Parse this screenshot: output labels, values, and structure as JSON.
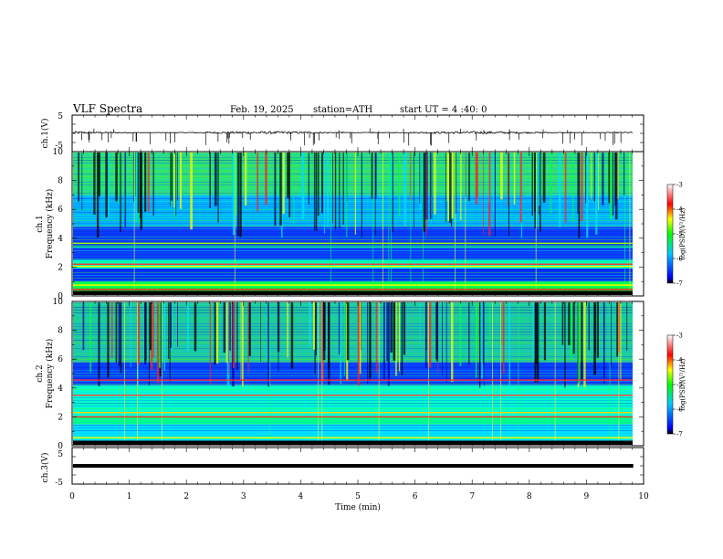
{
  "header": {
    "title": "VLF  Spectra",
    "date": "Feb. 19, 2025",
    "station": "station=ATH",
    "start": "start  UT  =   4  :40: 0"
  },
  "chart_data": [
    {
      "type": "line",
      "name": "ch1-waveform",
      "ylabel": "ch.1(V)",
      "ylim": [
        -5,
        5
      ],
      "yticks": [
        "5",
        "-5"
      ],
      "xlim": [
        0,
        10
      ],
      "baseline_v": 0.2,
      "noise_v": 0.35,
      "spike_count": 70,
      "spike_max_v": -3.5,
      "line_color": "#000000"
    },
    {
      "type": "heatmap",
      "name": "ch1-spectrogram",
      "ylabel_top": "ch.1",
      "ylabel": "Frequency (kHz)",
      "ylim": [
        0,
        10
      ],
      "yticks": [
        "0",
        "2",
        "4",
        "6",
        "8",
        "10"
      ],
      "xlim": [
        0,
        9.82
      ],
      "bands_khz": [
        {
          "from": 0,
          "to": 0.35,
          "color": "#000000"
        },
        {
          "from": 0.35,
          "to": 1.0,
          "color": "#00ff3c"
        },
        {
          "from": 1.0,
          "to": 1.9,
          "color": "#0033ff"
        },
        {
          "from": 1.9,
          "to": 2.5,
          "color": "#00ffc0"
        },
        {
          "from": 2.5,
          "to": 4.8,
          "color": "#0a3cff"
        },
        {
          "from": 4.8,
          "to": 7.0,
          "color": "#00b4ff"
        },
        {
          "from": 7.0,
          "to": 10.0,
          "color": "#2ee07a"
        }
      ],
      "lines_khz": [
        {
          "f": 0.45,
          "color": "#ff2020"
        },
        {
          "f": 0.75,
          "color": "#ffff00"
        },
        {
          "f": 2.05,
          "color": "#ffff00"
        },
        {
          "f": 2.2,
          "color": "#ff3030"
        },
        {
          "f": 3.4,
          "color": "#00ff80"
        },
        {
          "f": 3.65,
          "color": "#9cff00"
        }
      ],
      "vertical_event_count": 140
    },
    {
      "type": "heatmap",
      "name": "ch2-spectrogram",
      "ylabel_top": "ch.2",
      "ylabel": "Frequency (kHz)",
      "ylim": [
        0,
        10
      ],
      "yticks": [
        "0",
        "2",
        "4",
        "6",
        "8",
        "10"
      ],
      "xlim": [
        0,
        9.82
      ],
      "bands_khz": [
        {
          "from": 0,
          "to": 0.3,
          "color": "#000000"
        },
        {
          "from": 0.3,
          "to": 1.5,
          "color": "#00e0ff"
        },
        {
          "from": 1.5,
          "to": 2.0,
          "color": "#00ff80"
        },
        {
          "from": 2.0,
          "to": 4.2,
          "color": "#00ffd0"
        },
        {
          "from": 4.2,
          "to": 5.8,
          "color": "#0a3cff"
        },
        {
          "from": 5.8,
          "to": 10.0,
          "color": "#20c8a0"
        }
      ],
      "lines_khz": [
        {
          "f": 0.55,
          "color": "#ffff00"
        },
        {
          "f": 2.0,
          "color": "#ff3020"
        },
        {
          "f": 2.3,
          "color": "#ffd000"
        },
        {
          "f": 3.5,
          "color": "#ff4040"
        },
        {
          "f": 4.55,
          "color": "#ff3030"
        }
      ],
      "vertical_event_count": 130
    },
    {
      "type": "line",
      "name": "ch3-waveform",
      "ylabel": "ch.3(V)",
      "ylim": [
        -5,
        5
      ],
      "yticks": [
        "5",
        "-5"
      ],
      "xlim": [
        0,
        10
      ],
      "baseline_v": 0.0,
      "line_color": "#000000"
    }
  ],
  "xaxis": {
    "label": "Time  (min)",
    "ticks": [
      "0",
      "1",
      "2",
      "3",
      "4",
      "5",
      "6",
      "7",
      "8",
      "9",
      "10"
    ],
    "xlim": [
      0,
      10
    ]
  },
  "colorbars": [
    {
      "label": "log(PSD)(V²/Hz)",
      "ticks": [
        "-3",
        "-4",
        "-5",
        "-6",
        "-7"
      ],
      "range": [
        -7,
        -3
      ],
      "colors": [
        "#000000",
        "#0000ff",
        "#00c8ff",
        "#00ff00",
        "#ffff00",
        "#ff0000",
        "#ffffff"
      ]
    },
    {
      "label": "log(PSD)(V²/Hz)",
      "ticks": [
        "-3",
        "-4",
        "-5",
        "-6",
        "-7"
      ],
      "range": [
        -7,
        -3
      ],
      "colors": [
        "#000000",
        "#0000ff",
        "#00c8ff",
        "#00ff00",
        "#ffff00",
        "#ff0000",
        "#ffffff"
      ]
    }
  ]
}
